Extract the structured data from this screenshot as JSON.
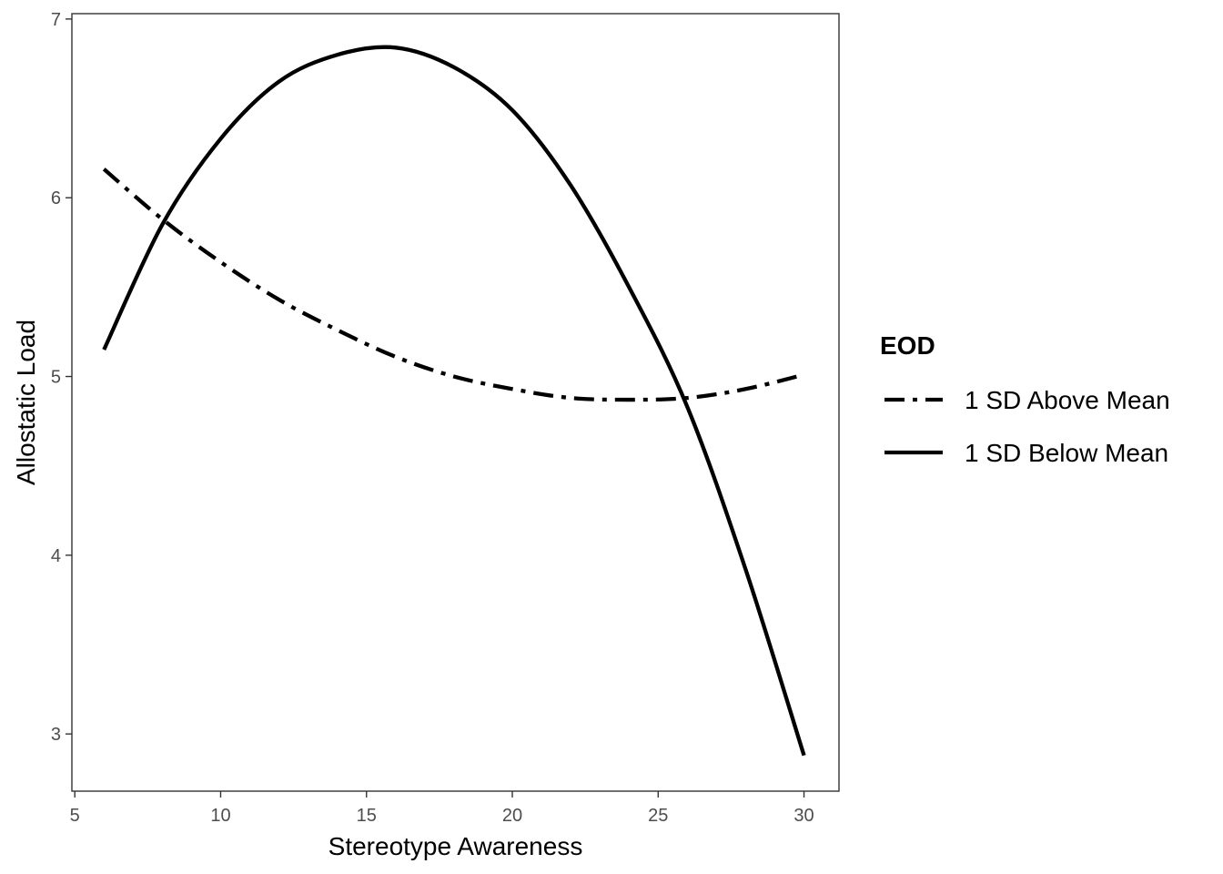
{
  "chart_data": {
    "type": "line",
    "title": "",
    "xlabel": "Stereotype Awareness",
    "ylabel": "Allostatic Load",
    "xlim": [
      4.9,
      31.2
    ],
    "ylim": [
      2.68,
      7.03
    ],
    "xticks": [
      5,
      10,
      15,
      20,
      25,
      30
    ],
    "yticks": [
      3,
      4,
      5,
      6,
      7
    ],
    "grid": false,
    "legend": {
      "title": "EOD",
      "placement": "right"
    },
    "series": [
      {
        "name": "1 SD Above Mean",
        "line_style": "dashdot",
        "color": "#000000",
        "x": [
          6,
          8,
          10,
          12,
          14,
          16,
          18,
          20,
          22,
          24,
          26,
          28,
          30
        ],
        "y": [
          6.16,
          5.88,
          5.64,
          5.43,
          5.26,
          5.11,
          5.0,
          4.93,
          4.88,
          4.87,
          4.88,
          4.93,
          5.01
        ]
      },
      {
        "name": "1 SD Below Mean",
        "line_style": "solid",
        "color": "#000000",
        "x": [
          6,
          8,
          10,
          12,
          14,
          16,
          18,
          20,
          22,
          24,
          26,
          28,
          30
        ],
        "y": [
          5.15,
          5.85,
          6.33,
          6.65,
          6.8,
          6.84,
          6.73,
          6.49,
          6.07,
          5.5,
          4.83,
          3.92,
          2.88
        ]
      }
    ]
  }
}
